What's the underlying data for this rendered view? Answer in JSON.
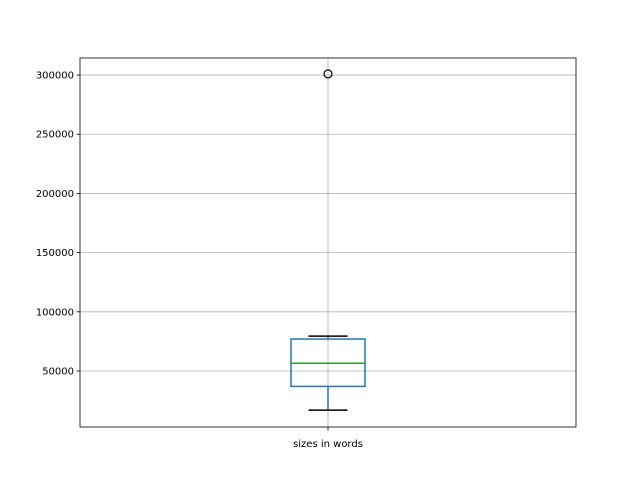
{
  "chart_data": {
    "type": "boxplot",
    "title": "",
    "xlabel": "",
    "ylabel": "",
    "categories": [
      "sizes in words"
    ],
    "boxes": [
      {
        "label": "sizes in words",
        "whislo": 17000,
        "q1": 37000,
        "median": 56500,
        "q3": 77000,
        "whishi": 79500,
        "fliers": [
          301000
        ]
      }
    ],
    "ylim": [
      2700,
      314400
    ],
    "yticks": [
      50000,
      100000,
      150000,
      200000,
      250000,
      300000
    ],
    "ytick_labels": [
      "50000",
      "100000",
      "150000",
      "200000",
      "250000",
      "300000"
    ],
    "grid": true,
    "colors": {
      "box": "#1f77b4",
      "median": "#2ca02c",
      "whisker": "#1f77b4",
      "cap": "#000000",
      "flier": "#000000",
      "grid": "#b0b0b0"
    }
  }
}
